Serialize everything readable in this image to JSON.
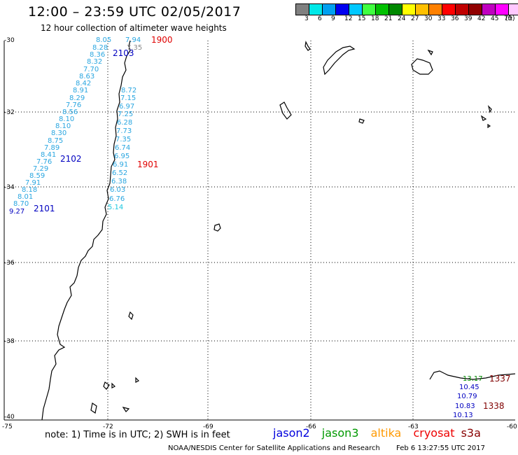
{
  "header": {
    "title": "12:00 – 23:59 UTC 02/05/2017",
    "subtitle": "12 hour collection of altimeter wave heights"
  },
  "legend": {
    "unit": "(ft)",
    "colors": [
      "#808080",
      "#00e8e8",
      "#00a0f0",
      "#0000f0",
      "#00c8ff",
      "#40ff40",
      "#00c000",
      "#008800",
      "#ffff00",
      "#ffc000",
      "#ff8000",
      "#ff0000",
      "#c00000",
      "#900000",
      "#c000c0",
      "#ff00ff",
      "#ffc8ff",
      "#000000"
    ],
    "labels": [
      "3",
      "6",
      "9",
      "12",
      "15",
      "18",
      "21",
      "24",
      "27",
      "30",
      "33",
      "36",
      "39",
      "42",
      "45",
      "70"
    ]
  },
  "axes": {
    "lat_labels": [
      "-30",
      "-32",
      "-34",
      "-36",
      "-38",
      "-40"
    ],
    "lon_labels": [
      "-75",
      "-72",
      "-69",
      "-66",
      "-63",
      "-60"
    ]
  },
  "passes": [
    {
      "id": "1900",
      "color": "#e00000"
    },
    {
      "id": "2103",
      "color": "#0000c0"
    },
    {
      "id": "2102",
      "color": "#0000c0"
    },
    {
      "id": "1901",
      "color": "#e00000"
    },
    {
      "id": "2101",
      "color": "#0000c0"
    },
    {
      "id": "1337",
      "color": "#800000"
    },
    {
      "id": "1338",
      "color": "#800000"
    }
  ],
  "swh": {
    "track_a": [
      "8.05",
      "8.28",
      "8.36",
      "8.32",
      "7.70",
      "8.63",
      "8.42",
      "8.91",
      "8.29",
      "7.76",
      "8.56",
      "8.10",
      "8.10",
      "8.30",
      "8.75",
      "7.89",
      "8.41",
      "7.76",
      "7.29",
      "8.59",
      "7.91",
      "8.18",
      "8.01",
      "8.70",
      "9.27"
    ],
    "track_b": [
      "7.94",
      "7.35",
      "8.72",
      "7.15",
      "6.97",
      "7.25",
      "6.28",
      "7.73",
      "7.35",
      "6.74",
      "6.95",
      "6.91",
      "6.52",
      "6.38",
      "6.03",
      "6.76",
      "5.14"
    ],
    "track_c": [
      "10.45",
      "10.79",
      "10.83",
      "10.13"
    ],
    "track_d": [
      "13.17"
    ]
  },
  "note": "note:  1) Time is in UTC;  2) SWH is in feet",
  "missions": [
    {
      "name": "jason2",
      "color": "#0000dd"
    },
    {
      "name": "jason3",
      "color": "#009900"
    },
    {
      "name": "altika",
      "color": "#ff9900"
    },
    {
      "name": "cryosat",
      "color": "#ee0000"
    },
    {
      "name": "s3a",
      "color": "#880000"
    }
  ],
  "footer": {
    "org": "NOAA/NESDIS Center for Satellite Applications and Research",
    "timestamp": "Feb  6 13:27:55 UTC 2017"
  }
}
